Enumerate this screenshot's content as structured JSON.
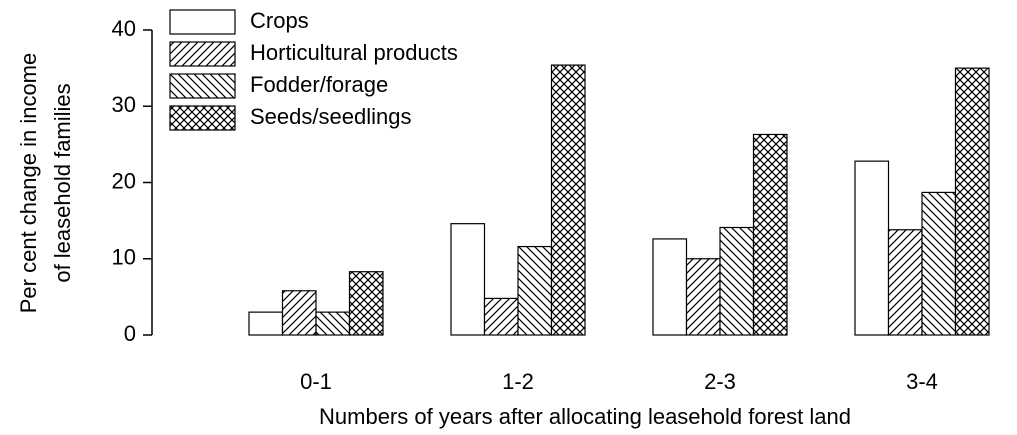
{
  "chart_data": {
    "type": "bar",
    "x_label": "Numbers of years after allocating leasehold forest land",
    "y_label": [
      "Per cent change in income",
      "of leasehold families"
    ],
    "categories": [
      "0-1",
      "1-2",
      "2-3",
      "3-4"
    ],
    "series": [
      {
        "name": "Crops",
        "color": "#ffffff",
        "hatch": "none",
        "values": [
          3,
          14.6,
          12.6,
          22.8
        ]
      },
      {
        "name": "Horticultural products",
        "color": "#ffffff",
        "hatch": "forward-diagonal",
        "values": [
          5.8,
          4.8,
          10,
          13.8
        ]
      },
      {
        "name": "Fodder/forage",
        "color": "#ffffff",
        "hatch": "backward-diagonal",
        "values": [
          3,
          11.6,
          14.1,
          18.7
        ]
      },
      {
        "name": "Seeds/seedlings",
        "color": "#ffffff",
        "hatch": "crosshatch",
        "values": [
          8.3,
          35.4,
          26.3,
          35
        ]
      }
    ],
    "ylim": [
      0,
      40
    ],
    "yticks": [
      0,
      10,
      20,
      30,
      40
    ],
    "legend": "upper left"
  }
}
